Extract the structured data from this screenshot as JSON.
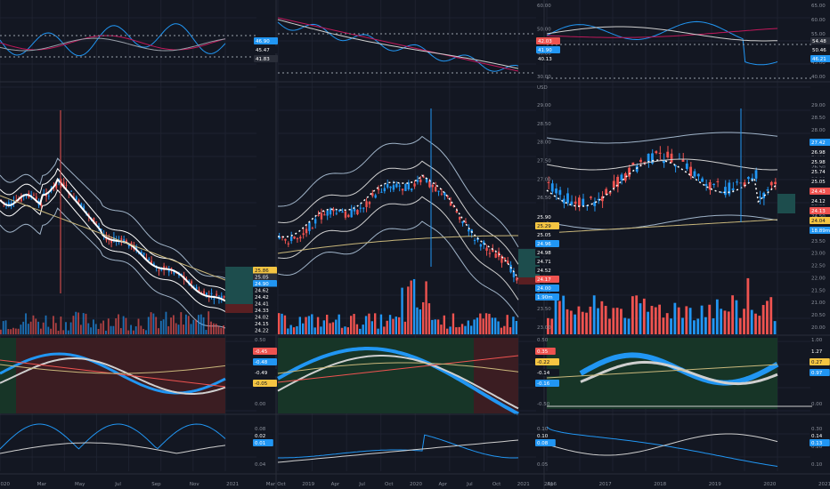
{
  "colors": {
    "background": "#131722",
    "grid": "#1e2230",
    "divider": "#2a2e39",
    "up": "#2196f3",
    "down": "#ef5350",
    "white": "#ffffff",
    "yellow": "#c9b77b",
    "pink": "#c2185b",
    "green_zone": "#173527",
    "red_zone": "#3b1d22",
    "teal_box": "#1d4d4d"
  },
  "left_pane": {
    "top_axis_labels": [],
    "top_badges": [
      {
        "text": "46.90",
        "color": "#2196f3"
      },
      {
        "text": "45.47",
        "color": "#131722"
      },
      {
        "text": "41.83",
        "color": "#2a2e39"
      }
    ],
    "main_badges": [
      {
        "text": "25.86",
        "color": "#f5c542",
        "text_color": "#131722"
      },
      {
        "text": "25.05",
        "color": "#2a2e39"
      },
      {
        "text": "24.90",
        "color": "#2196f3"
      },
      {
        "text": "24.62",
        "color": "#131722"
      },
      {
        "text": "24.42",
        "color": "#131722"
      },
      {
        "text": "24.41",
        "color": "#131722"
      },
      {
        "text": "24.33",
        "color": "#131722"
      },
      {
        "text": "24.02",
        "color": "#131722"
      },
      {
        "text": "24.15",
        "color": "#131722"
      },
      {
        "text": "24.22",
        "color": "#131722"
      }
    ],
    "osc_axis": [
      "0.50",
      "0.00"
    ],
    "osc_badges": [
      {
        "text": "-0.45",
        "color": "#ef5350"
      },
      {
        "text": "-0.48",
        "color": "#2196f3"
      },
      {
        "text": "-0.49",
        "color": "#131722"
      },
      {
        "text": "-0.05",
        "color": "#f5c542",
        "text_color": "#131722"
      }
    ],
    "bottom_axis": [
      "0.08",
      "0.04"
    ],
    "bottom_badges": [
      {
        "text": "0.02",
        "color": "#131722"
      },
      {
        "text": "0.01",
        "color": "#2196f3"
      }
    ],
    "x_labels": [
      "2020",
      "Mar",
      "May",
      "Jul",
      "Sep",
      "Nov",
      "2021",
      "Mar"
    ]
  },
  "middle_pane": {
    "top_axis_labels": [
      "60.00",
      "50.00",
      "40.00",
      "30.00"
    ],
    "top_badges": [
      {
        "text": "42.03",
        "color": "#ef5350"
      },
      {
        "text": "41.90",
        "color": "#2196f3"
      },
      {
        "text": "40.13",
        "color": "#131722"
      }
    ],
    "currency": "USD",
    "main_axis_labels": [
      "29.00",
      "28.50",
      "28.00",
      "27.50",
      "27.00",
      "26.50",
      "26.00",
      "25.50",
      "25.00",
      "24.50",
      "24.00",
      "23.50",
      "23.00"
    ],
    "main_badges": [
      {
        "text": "25.90",
        "color": "#131722"
      },
      {
        "text": "25.29",
        "color": "#f5c542",
        "text_color": "#131722"
      },
      {
        "text": "25.05",
        "color": "#131722"
      },
      {
        "text": "24.96",
        "color": "#2196f3"
      },
      {
        "text": "24.98",
        "color": "#131722"
      },
      {
        "text": "24.71",
        "color": "#131722"
      },
      {
        "text": "24.52",
        "color": "#131722"
      },
      {
        "text": "24.17",
        "color": "#ef5350"
      },
      {
        "text": "24.00",
        "color": "#2196f3"
      },
      {
        "text": "1.90m",
        "color": "#2196f3"
      }
    ],
    "osc_axis": [
      "0.50",
      "0.00",
      "-0.50"
    ],
    "osc_badges": [
      {
        "text": "0.35",
        "color": "#ef5350"
      },
      {
        "text": "-0.22",
        "color": "#f5c542",
        "text_color": "#131722"
      },
      {
        "text": "-0.14",
        "color": "#131722"
      },
      {
        "text": "-0.16",
        "color": "#2196f3"
      }
    ],
    "bottom_axis": [
      "0.10",
      "0.05"
    ],
    "bottom_badges": [
      {
        "text": "0.10",
        "color": "#131722"
      },
      {
        "text": "0.08",
        "color": "#2196f3"
      }
    ],
    "x_labels": [
      "Oct",
      "2019",
      "Apr",
      "Jul",
      "Oct",
      "2020",
      "Apr",
      "Jul",
      "Oct",
      "2021",
      "Ap"
    ]
  },
  "right_pane": {
    "top_axis_labels": [
      "65.00",
      "60.00",
      "55.00",
      "50.00",
      "45.00",
      "40.00"
    ],
    "top_badges": [
      {
        "text": "54.48",
        "color": "#2a2e39"
      },
      {
        "text": "50.46",
        "color": "#131722"
      },
      {
        "text": "46.21",
        "color": "#2196f3"
      }
    ],
    "main_axis_labels": [
      "29.00",
      "28.50",
      "28.00",
      "27.50",
      "27.00",
      "26.50",
      "26.00",
      "25.50",
      "25.00",
      "24.50",
      "24.00",
      "23.50",
      "23.00",
      "22.50",
      "22.00",
      "21.50",
      "21.00",
      "20.50",
      "20.00"
    ],
    "main_badges": [
      {
        "text": "27.42",
        "color": "#2196f3"
      },
      {
        "text": "26.98",
        "color": "#131722"
      },
      {
        "text": "25.98",
        "color": "#131722"
      },
      {
        "text": "25.74",
        "color": "#131722"
      },
      {
        "text": "25.05",
        "color": "#131722"
      },
      {
        "text": "24.43",
        "color": "#ef5350"
      },
      {
        "text": "24.12",
        "color": "#131722"
      },
      {
        "text": "24.13",
        "color": "#ef5350"
      },
      {
        "text": "24.04",
        "color": "#f5c542",
        "text_color": "#131722"
      },
      {
        "text": "18.89m",
        "color": "#2196f3"
      }
    ],
    "osc_axis": [
      "1.00",
      "0.00"
    ],
    "osc_badges": [
      {
        "text": "1.27",
        "color": "#131722"
      },
      {
        "text": "0.27",
        "color": "#f5c542",
        "text_color": "#131722"
      },
      {
        "text": "0.97",
        "color": "#2196f3"
      }
    ],
    "bottom_axis": [
      "0.30",
      "0.20",
      "0.10"
    ],
    "bottom_badges": [
      {
        "text": "0.14",
        "color": "#131722"
      },
      {
        "text": "0.13",
        "color": "#2196f3"
      }
    ],
    "x_labels": [
      "2016",
      "2017",
      "2018",
      "2019",
      "2020",
      "2021"
    ]
  }
}
